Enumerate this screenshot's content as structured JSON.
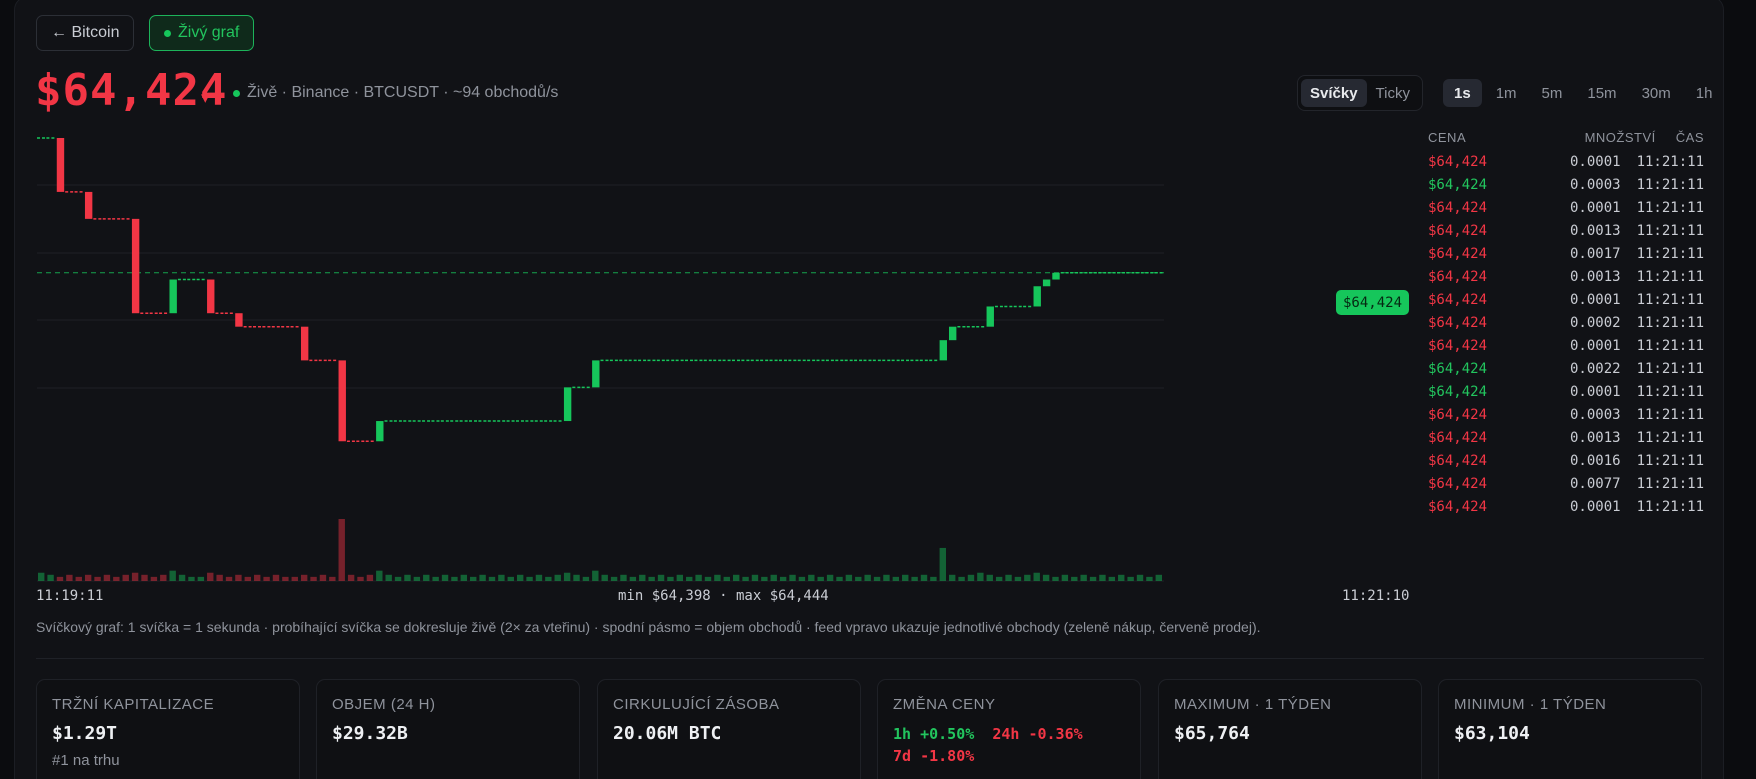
{
  "header": {
    "back_label": "← Bitcoin",
    "live_label": "Živý graf"
  },
  "ticker": {
    "price": "$64,424",
    "direction": "down",
    "direction_glyph": "▾",
    "live_info": "Živě · Binance · BTCUSDT · ~94 obchodů/s"
  },
  "mode_tabs": [
    {
      "label": "Svíčky",
      "active": true
    },
    {
      "label": "Ticky",
      "active": false
    }
  ],
  "timeframes": [
    {
      "label": "1s",
      "active": true
    },
    {
      "label": "1m",
      "active": false
    },
    {
      "label": "5m",
      "active": false
    },
    {
      "label": "15m",
      "active": false
    },
    {
      "label": "30m",
      "active": false
    },
    {
      "label": "1h",
      "active": false
    }
  ],
  "chart": {
    "current_price_label": "$64,424",
    "time_start": "11:19:11",
    "time_end": "11:21:10",
    "minmax": "min $64,398 · max $64,444",
    "caption": "Svíčkový graf: 1 svíčka = 1 sekunda · probíhající svíčka se dokresluje živě (2× za vteřinu) · spodní pásmo = objem obchodů · feed vpravo ukazuje jednotlivé obchody (zeleně nákup, červeně prodej).",
    "colors": {
      "up": "#16c65b",
      "down": "#f23645",
      "grid": "#1e2026"
    }
  },
  "chart_data": {
    "type": "candlestick",
    "ylim": [
      64398,
      64444
    ],
    "x_start": "11:19:11",
    "x_end": "11:21:10",
    "current": 64424,
    "candles": [
      {
        "t": 0,
        "o": 64444,
        "c": 64444
      },
      {
        "t": 1,
        "o": 64444,
        "c": 64444
      },
      {
        "t": 2,
        "o": 64444,
        "c": 64436
      },
      {
        "t": 3,
        "o": 64436,
        "c": 64436
      },
      {
        "t": 4,
        "o": 64436,
        "c": 64436
      },
      {
        "t": 5,
        "o": 64436,
        "c": 64432
      },
      {
        "t": 6,
        "o": 64432,
        "c": 64432
      },
      {
        "t": 7,
        "o": 64432,
        "c": 64432
      },
      {
        "t": 8,
        "o": 64432,
        "c": 64432
      },
      {
        "t": 9,
        "o": 64432,
        "c": 64432
      },
      {
        "t": 10,
        "o": 64432,
        "c": 64418
      },
      {
        "t": 11,
        "o": 64418,
        "c": 64418
      },
      {
        "t": 12,
        "o": 64418,
        "c": 64418
      },
      {
        "t": 13,
        "o": 64418,
        "c": 64418
      },
      {
        "t": 14,
        "o": 64418,
        "c": 64423
      },
      {
        "t": 15,
        "o": 64423,
        "c": 64423
      },
      {
        "t": 16,
        "o": 64423,
        "c": 64423
      },
      {
        "t": 17,
        "o": 64423,
        "c": 64423
      },
      {
        "t": 18,
        "o": 64423,
        "c": 64418
      },
      {
        "t": 19,
        "o": 64418,
        "c": 64418
      },
      {
        "t": 20,
        "o": 64418,
        "c": 64418
      },
      {
        "t": 21,
        "o": 64418,
        "c": 64416
      },
      {
        "t": 22,
        "o": 64416,
        "c": 64416
      },
      {
        "t": 23,
        "o": 64416,
        "c": 64416
      },
      {
        "t": 24,
        "o": 64416,
        "c": 64416
      },
      {
        "t": 25,
        "o": 64416,
        "c": 64416
      },
      {
        "t": 26,
        "o": 64416,
        "c": 64416
      },
      {
        "t": 27,
        "o": 64416,
        "c": 64416
      },
      {
        "t": 28,
        "o": 64416,
        "c": 64411
      },
      {
        "t": 29,
        "o": 64411,
        "c": 64411
      },
      {
        "t": 30,
        "o": 64411,
        "c": 64411
      },
      {
        "t": 31,
        "o": 64411,
        "c": 64411
      },
      {
        "t": 32,
        "o": 64411,
        "c": 64399
      },
      {
        "t": 33,
        "o": 64399,
        "c": 64399
      },
      {
        "t": 34,
        "o": 64399,
        "c": 64399
      },
      {
        "t": 35,
        "o": 64399,
        "c": 64399
      },
      {
        "t": 36,
        "o": 64399,
        "c": 64402
      },
      {
        "t": 37,
        "o": 64402,
        "c": 64402
      },
      {
        "t": 38,
        "o": 64402,
        "c": 64402
      },
      {
        "t": 39,
        "o": 64402,
        "c": 64402
      },
      {
        "t": 40,
        "o": 64402,
        "c": 64402
      },
      {
        "t": 41,
        "o": 64402,
        "c": 64402
      },
      {
        "t": 42,
        "o": 64402,
        "c": 64402
      },
      {
        "t": 43,
        "o": 64402,
        "c": 64402
      },
      {
        "t": 44,
        "o": 64402,
        "c": 64402
      },
      {
        "t": 45,
        "o": 64402,
        "c": 64402
      },
      {
        "t": 46,
        "o": 64402,
        "c": 64402
      },
      {
        "t": 47,
        "o": 64402,
        "c": 64402
      },
      {
        "t": 48,
        "o": 64402,
        "c": 64402
      },
      {
        "t": 49,
        "o": 64402,
        "c": 64402
      },
      {
        "t": 50,
        "o": 64402,
        "c": 64402
      },
      {
        "t": 51,
        "o": 64402,
        "c": 64402
      },
      {
        "t": 52,
        "o": 64402,
        "c": 64402
      },
      {
        "t": 53,
        "o": 64402,
        "c": 64402
      },
      {
        "t": 54,
        "o": 64402,
        "c": 64402
      },
      {
        "t": 55,
        "o": 64402,
        "c": 64402
      },
      {
        "t": 56,
        "o": 64402,
        "c": 64407
      },
      {
        "t": 57,
        "o": 64407,
        "c": 64407
      },
      {
        "t": 58,
        "o": 64407,
        "c": 64407
      },
      {
        "t": 59,
        "o": 64407,
        "c": 64411
      },
      {
        "t": 60,
        "o": 64411,
        "c": 64411
      },
      {
        "t": 61,
        "o": 64411,
        "c": 64411
      },
      {
        "t": 62,
        "o": 64411,
        "c": 64411
      },
      {
        "t": 63,
        "o": 64411,
        "c": 64411
      },
      {
        "t": 64,
        "o": 64411,
        "c": 64411
      },
      {
        "t": 65,
        "o": 64411,
        "c": 64411
      },
      {
        "t": 66,
        "o": 64411,
        "c": 64411
      },
      {
        "t": 67,
        "o": 64411,
        "c": 64411
      },
      {
        "t": 68,
        "o": 64411,
        "c": 64411
      },
      {
        "t": 69,
        "o": 64411,
        "c": 64411
      },
      {
        "t": 70,
        "o": 64411,
        "c": 64411
      },
      {
        "t": 71,
        "o": 64411,
        "c": 64411
      },
      {
        "t": 72,
        "o": 64411,
        "c": 64411
      },
      {
        "t": 73,
        "o": 64411,
        "c": 64411
      },
      {
        "t": 74,
        "o": 64411,
        "c": 64411
      },
      {
        "t": 75,
        "o": 64411,
        "c": 64411
      },
      {
        "t": 76,
        "o": 64411,
        "c": 64411
      },
      {
        "t": 77,
        "o": 64411,
        "c": 64411
      },
      {
        "t": 78,
        "o": 64411,
        "c": 64411
      },
      {
        "t": 79,
        "o": 64411,
        "c": 64411
      },
      {
        "t": 80,
        "o": 64411,
        "c": 64411
      },
      {
        "t": 81,
        "o": 64411,
        "c": 64411
      },
      {
        "t": 82,
        "o": 64411,
        "c": 64411
      },
      {
        "t": 83,
        "o": 64411,
        "c": 64411
      },
      {
        "t": 84,
        "o": 64411,
        "c": 64411
      },
      {
        "t": 85,
        "o": 64411,
        "c": 64411
      },
      {
        "t": 86,
        "o": 64411,
        "c": 64411
      },
      {
        "t": 87,
        "o": 64411,
        "c": 64411
      },
      {
        "t": 88,
        "o": 64411,
        "c": 64411
      },
      {
        "t": 89,
        "o": 64411,
        "c": 64411
      },
      {
        "t": 90,
        "o": 64411,
        "c": 64411
      },
      {
        "t": 91,
        "o": 64411,
        "c": 64411
      },
      {
        "t": 92,
        "o": 64411,
        "c": 64411
      },
      {
        "t": 93,
        "o": 64411,
        "c": 64411
      },
      {
        "t": 94,
        "o": 64411,
        "c": 64411
      },
      {
        "t": 95,
        "o": 64411,
        "c": 64411
      },
      {
        "t": 96,
        "o": 64411,
        "c": 64414
      },
      {
        "t": 97,
        "o": 64414,
        "c": 64416
      },
      {
        "t": 98,
        "o": 64416,
        "c": 64416
      },
      {
        "t": 99,
        "o": 64416,
        "c": 64416
      },
      {
        "t": 100,
        "o": 64416,
        "c": 64416
      },
      {
        "t": 101,
        "o": 64416,
        "c": 64419
      },
      {
        "t": 102,
        "o": 64419,
        "c": 64419
      },
      {
        "t": 103,
        "o": 64419,
        "c": 64419
      },
      {
        "t": 104,
        "o": 64419,
        "c": 64419
      },
      {
        "t": 105,
        "o": 64419,
        "c": 64419
      },
      {
        "t": 106,
        "o": 64419,
        "c": 64422
      },
      {
        "t": 107,
        "o": 64422,
        "c": 64423
      },
      {
        "t": 108,
        "o": 64423,
        "c": 64424
      },
      {
        "t": 109,
        "o": 64424,
        "c": 64424
      },
      {
        "t": 110,
        "o": 64424,
        "c": 64424
      },
      {
        "t": 111,
        "o": 64424,
        "c": 64424
      },
      {
        "t": 112,
        "o": 64424,
        "c": 64424
      },
      {
        "t": 113,
        "o": 64424,
        "c": 64424
      },
      {
        "t": 114,
        "o": 64424,
        "c": 64424
      },
      {
        "t": 115,
        "o": 64424,
        "c": 64424
      },
      {
        "t": 116,
        "o": 64424,
        "c": 64424
      },
      {
        "t": 117,
        "o": 64424,
        "c": 64424
      },
      {
        "t": 118,
        "o": 64424,
        "c": 64424
      },
      {
        "t": 119,
        "o": 64424,
        "c": 64424
      }
    ],
    "volume": [
      0.4,
      0.3,
      0.2,
      0.3,
      0.2,
      0.3,
      0.2,
      0.3,
      0.2,
      0.3,
      0.4,
      0.3,
      0.2,
      0.3,
      0.5,
      0.3,
      0.2,
      0.2,
      0.4,
      0.3,
      0.2,
      0.3,
      0.2,
      0.3,
      0.2,
      0.3,
      0.2,
      0.2,
      0.3,
      0.2,
      0.3,
      0.2,
      3.0,
      0.3,
      0.2,
      0.3,
      0.5,
      0.3,
      0.2,
      0.3,
      0.2,
      0.3,
      0.2,
      0.3,
      0.2,
      0.3,
      0.2,
      0.3,
      0.2,
      0.3,
      0.2,
      0.3,
      0.2,
      0.3,
      0.2,
      0.3,
      0.4,
      0.3,
      0.2,
      0.5,
      0.3,
      0.2,
      0.3,
      0.2,
      0.3,
      0.2,
      0.3,
      0.2,
      0.3,
      0.2,
      0.3,
      0.2,
      0.3,
      0.2,
      0.3,
      0.2,
      0.3,
      0.2,
      0.3,
      0.2,
      0.3,
      0.2,
      0.3,
      0.2,
      0.3,
      0.2,
      0.3,
      0.2,
      0.3,
      0.2,
      0.3,
      0.2,
      0.3,
      0.2,
      0.3,
      0.2,
      1.6,
      0.3,
      0.2,
      0.3,
      0.4,
      0.3,
      0.2,
      0.3,
      0.2,
      0.3,
      0.4,
      0.3,
      0.2,
      0.3,
      0.2,
      0.3,
      0.2,
      0.3,
      0.2,
      0.3,
      0.2,
      0.3,
      0.2,
      0.3
    ]
  },
  "feed": {
    "headers": {
      "price": "CENA",
      "qty": "MNOŽSTVÍ",
      "time": "ČAS"
    },
    "rows": [
      {
        "price": "$64,424",
        "side": "sell",
        "qty": "0.0001",
        "time": "11:21:11"
      },
      {
        "price": "$64,424",
        "side": "buy",
        "qty": "0.0003",
        "time": "11:21:11"
      },
      {
        "price": "$64,424",
        "side": "sell",
        "qty": "0.0001",
        "time": "11:21:11"
      },
      {
        "price": "$64,424",
        "side": "sell",
        "qty": "0.0013",
        "time": "11:21:11"
      },
      {
        "price": "$64,424",
        "side": "sell",
        "qty": "0.0017",
        "time": "11:21:11"
      },
      {
        "price": "$64,424",
        "side": "sell",
        "qty": "0.0013",
        "time": "11:21:11"
      },
      {
        "price": "$64,424",
        "side": "sell",
        "qty": "0.0001",
        "time": "11:21:11"
      },
      {
        "price": "$64,424",
        "side": "sell",
        "qty": "0.0002",
        "time": "11:21:11"
      },
      {
        "price": "$64,424",
        "side": "sell",
        "qty": "0.0001",
        "time": "11:21:11"
      },
      {
        "price": "$64,424",
        "side": "buy",
        "qty": "0.0022",
        "time": "11:21:11"
      },
      {
        "price": "$64,424",
        "side": "buy",
        "qty": "0.0001",
        "time": "11:21:11"
      },
      {
        "price": "$64,424",
        "side": "sell",
        "qty": "0.0003",
        "time": "11:21:11"
      },
      {
        "price": "$64,424",
        "side": "sell",
        "qty": "0.0013",
        "time": "11:21:11"
      },
      {
        "price": "$64,424",
        "side": "sell",
        "qty": "0.0016",
        "time": "11:21:11"
      },
      {
        "price": "$64,424",
        "side": "sell",
        "qty": "0.0077",
        "time": "11:21:11"
      },
      {
        "price": "$64,424",
        "side": "sell",
        "qty": "0.0001",
        "time": "11:21:11"
      }
    ]
  },
  "stats": [
    {
      "label": "TRŽNÍ KAPITALIZACE",
      "value": "$1.29T",
      "sub": "#1 na trhu"
    },
    {
      "label": "OBJEM (24 H)",
      "value": "$29.32B",
      "sub": ""
    },
    {
      "label": "CIRKULUJÍCÍ ZÁSOBA",
      "value": "20.06M BTC",
      "sub": ""
    },
    {
      "label": "ZMĚNA CENY",
      "changes": [
        {
          "text": "1h +0.50%",
          "dir": "up"
        },
        {
          "text": "24h -0.36%",
          "dir": "down"
        },
        {
          "text": "7d -1.80%",
          "dir": "down"
        }
      ]
    },
    {
      "label": "MAXIMUM · 1 TÝDEN",
      "value": "$65,764",
      "sub": ""
    },
    {
      "label": "MINIMUM · 1 TÝDEN",
      "value": "$63,104",
      "sub": ""
    }
  ]
}
